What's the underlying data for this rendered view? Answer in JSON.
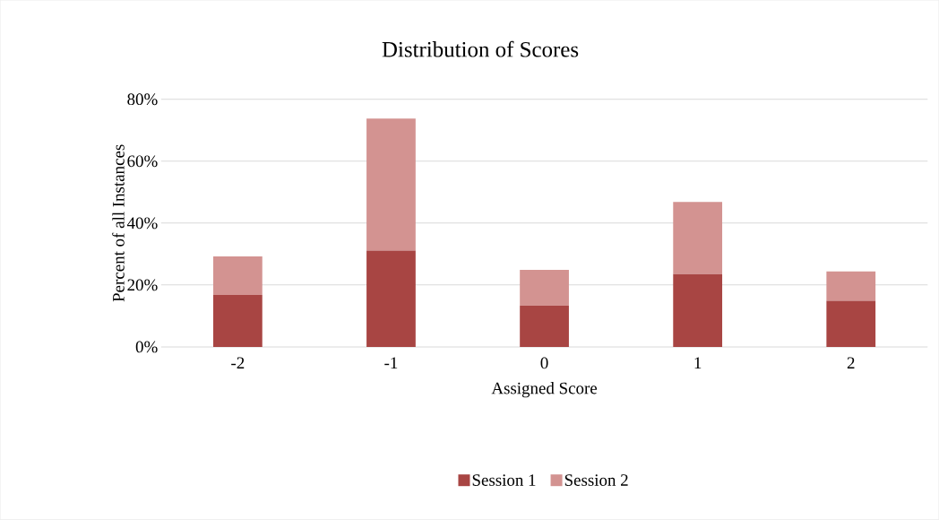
{
  "chart_data": {
    "type": "bar",
    "title": "Distribution of Scores",
    "xlabel": "Assigned Score",
    "ylabel": "Percent of all Instances",
    "categories": [
      "-2",
      "-1",
      "0",
      "1",
      "2"
    ],
    "stacked": true,
    "series": [
      {
        "name": "Session 1",
        "color": "#a84543",
        "values": [
          16.8,
          31.1,
          13.3,
          23.5,
          14.9
        ]
      },
      {
        "name": "Session 2",
        "color": "#d39391",
        "values": [
          12.4,
          42.7,
          11.6,
          23.3,
          9.5
        ]
      }
    ],
    "ylim": [
      0,
      80
    ],
    "yticks": [
      {
        "value": 0,
        "label": "0%"
      },
      {
        "value": 20,
        "label": "20%"
      },
      {
        "value": 40,
        "label": "40%"
      },
      {
        "value": 60,
        "label": "60%"
      },
      {
        "value": 80,
        "label": "80%"
      }
    ],
    "grid": "y",
    "legend": "bottom"
  }
}
